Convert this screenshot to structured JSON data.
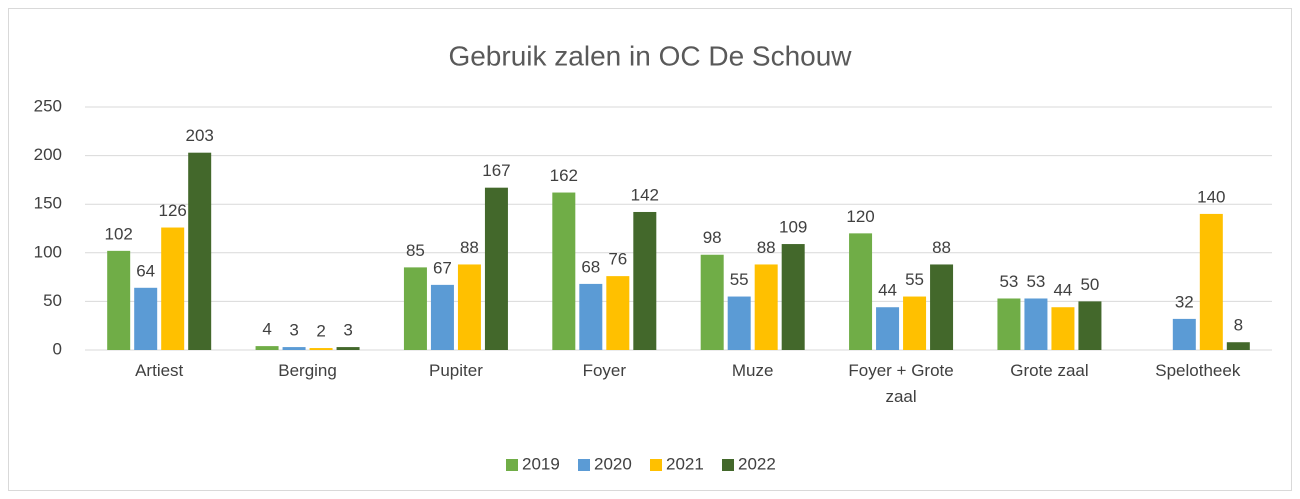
{
  "chart_data": {
    "type": "bar",
    "title": "Gebruik zalen in OC De Schouw",
    "categories": [
      "Artiest",
      "Berging",
      "Pupiter",
      "Foyer",
      "Muze",
      "Foyer + Grote zaal",
      "Grote zaal",
      "Spelotheek"
    ],
    "series": [
      {
        "name": "2019",
        "color": "#70ad47",
        "values": [
          102,
          4,
          85,
          162,
          98,
          120,
          53,
          null
        ]
      },
      {
        "name": "2020",
        "color": "#5b9bd5",
        "values": [
          64,
          3,
          67,
          68,
          55,
          44,
          53,
          32
        ]
      },
      {
        "name": "2021",
        "color": "#ffc000",
        "values": [
          126,
          2,
          88,
          76,
          88,
          55,
          44,
          140
        ]
      },
      {
        "name": "2022",
        "color": "#43682b",
        "values": [
          203,
          3,
          167,
          142,
          109,
          88,
          50,
          8
        ]
      }
    ],
    "ylim": [
      0,
      250
    ],
    "yticks": [
      0,
      50,
      100,
      150,
      200,
      250
    ],
    "grid": true,
    "legend": "bottom"
  }
}
